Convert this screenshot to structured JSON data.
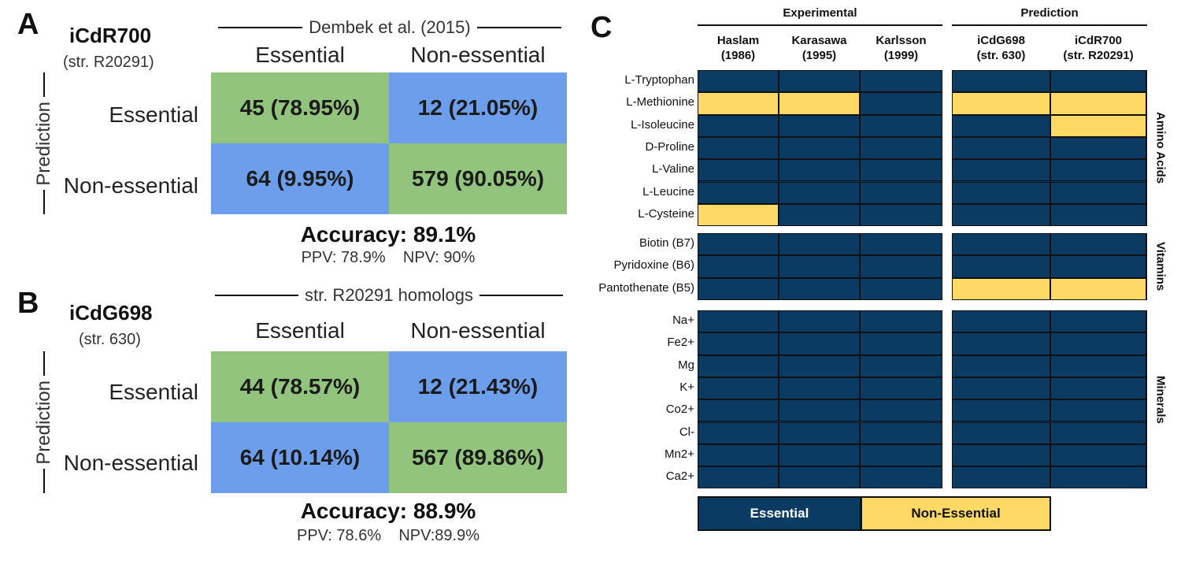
{
  "panel_a": {
    "letter": "A",
    "model": "iCdR700",
    "strain": "(str. R20291)",
    "bracket_label": "Dembek et al. (2015)",
    "col_headers": [
      "Essential",
      "Non-essential"
    ],
    "row_headers": [
      "Essential",
      "Non-essential"
    ],
    "axis_label": "Prediction",
    "cells": [
      "45 (78.95%)",
      "12 (21.05%)",
      "64 (9.95%)",
      "579 (90.05%)"
    ],
    "accuracy": "Accuracy: 89.1%",
    "ppv_npv": "PPV: 78.9%    NPV: 90%"
  },
  "panel_b": {
    "letter": "B",
    "model": "iCdG698",
    "strain": "(str. 630)",
    "bracket_label": "str. R20291 homologs",
    "col_headers": [
      "Essential",
      "Non-essential"
    ],
    "row_headers": [
      "Essential",
      "Non-essential"
    ],
    "axis_label": "Prediction",
    "cells": [
      "44 (78.57%)",
      "12 (21.43%)",
      "64 (10.14%)",
      "567 (89.86%)"
    ],
    "accuracy": "Accuracy: 88.9%",
    "ppv_npv": "PPV: 78.6%    NPV:89.9%"
  },
  "colors": {
    "green": "#93c47d",
    "blue": "#6d9eeb",
    "essential": "#0b3a63",
    "non_essential": "#ffd966"
  },
  "chart_data": [
    {
      "type": "table",
      "title": "",
      "model": "iCdR700 (str. R20291)",
      "reference": "Dembek et al. (2015)",
      "rows": [
        "Essential",
        "Non-essential"
      ],
      "columns": [
        "Essential",
        "Non-essential"
      ],
      "values": [
        [
          45,
          12
        ],
        [
          64,
          579
        ]
      ],
      "percent": [
        [
          78.95,
          21.05
        ],
        [
          9.95,
          90.05
        ]
      ],
      "accuracy": 89.1,
      "ppv": 78.9,
      "npv": 90
    },
    {
      "type": "table",
      "title": "",
      "model": "iCdG698 (str. 630)",
      "reference": "str. R20291 homologs",
      "rows": [
        "Essential",
        "Non-essential"
      ],
      "columns": [
        "Essential",
        "Non-essential"
      ],
      "values": [
        [
          44,
          12
        ],
        [
          64,
          567
        ]
      ],
      "percent": [
        [
          78.57,
          21.43
        ],
        [
          10.14,
          89.86
        ]
      ],
      "accuracy": 88.9,
      "ppv": 78.6,
      "npv": 89.9
    },
    {
      "type": "heatmap",
      "letter": "C",
      "group_headers": [
        "Experimental",
        "Prediction"
      ],
      "columns": [
        {
          "name": "Haslam",
          "sub": "(1986)",
          "group": "Experimental"
        },
        {
          "name": "Karasawa",
          "sub": "(1995)",
          "group": "Experimental"
        },
        {
          "name": "Karlsson",
          "sub": "(1999)",
          "group": "Experimental"
        },
        {
          "name": "iCdG698",
          "sub": "(str. 630)",
          "group": "Prediction"
        },
        {
          "name": "iCdR700",
          "sub": "(str. R20291)",
          "group": "Prediction"
        }
      ],
      "blocks": [
        {
          "name": "Amino Acids",
          "rows": [
            "L-Tryptophan",
            "L-Methionine",
            "L-Isoleucine",
            "D-Proline",
            "L-Valine",
            "L-Leucine",
            "L-Cysteine"
          ],
          "values": [
            [
              0,
              0,
              0,
              0,
              0
            ],
            [
              1,
              1,
              0,
              1,
              1
            ],
            [
              0,
              0,
              0,
              0,
              1
            ],
            [
              0,
              0,
              0,
              0,
              0
            ],
            [
              0,
              0,
              0,
              0,
              0
            ],
            [
              0,
              0,
              0,
              0,
              0
            ],
            [
              1,
              0,
              0,
              0,
              0
            ]
          ]
        },
        {
          "name": "Vitamins",
          "rows": [
            "Biotin (B7)",
            "Pyridoxine (B6)",
            "Pantothenate (B5)"
          ],
          "values": [
            [
              0,
              0,
              0,
              0,
              0
            ],
            [
              0,
              0,
              0,
              0,
              0
            ],
            [
              0,
              0,
              0,
              1,
              1
            ]
          ]
        },
        {
          "name": "Minerals",
          "rows": [
            "Na+",
            "Fe2+",
            "Mg",
            "K+",
            "Co2+",
            "Cl-",
            "Mn2+",
            "Ca2+"
          ],
          "values": [
            [
              0,
              0,
              0,
              0,
              0
            ],
            [
              0,
              0,
              0,
              0,
              0
            ],
            [
              0,
              0,
              0,
              0,
              0
            ],
            [
              0,
              0,
              0,
              0,
              0
            ],
            [
              0,
              0,
              0,
              0,
              0
            ],
            [
              0,
              0,
              0,
              0,
              0
            ],
            [
              0,
              0,
              0,
              0,
              0
            ],
            [
              0,
              0,
              0,
              0,
              0
            ]
          ]
        }
      ],
      "legend": [
        "Essential",
        "Non-Essential"
      ]
    }
  ]
}
